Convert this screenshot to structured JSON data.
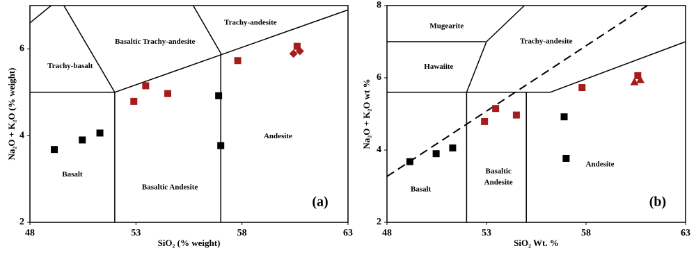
{
  "chart_data": [
    {
      "type": "scatter",
      "xlabel": "SiO₂ (% weight)",
      "ylabel": "Na₂O + K₂O (% weight)",
      "xlim": [
        48,
        63
      ],
      "ylim": [
        2,
        7
      ],
      "xticks": [
        48,
        53,
        58,
        63
      ],
      "yticks": [
        2,
        4,
        6
      ],
      "grid": false,
      "series": [
        {
          "color": "#000000",
          "marker": "square",
          "x": [
            49.15,
            50.47,
            51.3,
            56.9,
            57.0
          ],
          "values": [
            3.68,
            3.9,
            4.06,
            4.92,
            3.77
          ]
        },
        {
          "color": "#a51c1c",
          "marker": "square",
          "x": [
            52.9,
            53.46,
            54.5,
            57.8,
            60.6
          ],
          "values": [
            4.79,
            5.15,
            4.97,
            5.73,
            6.06
          ]
        },
        {
          "color": "#a51c1c",
          "marker": "diamond",
          "x": [
            60.43,
            60.73
          ],
          "values": [
            5.89,
            5.95
          ]
        }
      ],
      "boundaries": [
        {
          "x": [
            48,
            49.0
          ],
          "y": [
            6.6,
            7
          ]
        },
        {
          "x": [
            49.6,
            52
          ],
          "y": [
            7,
            5
          ]
        },
        {
          "x": [
            48,
            52
          ],
          "y": [
            5,
            5
          ]
        },
        {
          "x": [
            52,
            52
          ],
          "y": [
            2,
            5
          ]
        },
        {
          "x": [
            52,
            63
          ],
          "y": [
            5,
            6.9
          ]
        },
        {
          "x": [
            57,
            57
          ],
          "y": [
            2,
            5.9
          ]
        },
        {
          "x": [
            55.7,
            57
          ],
          "y": [
            7,
            5.9
          ]
        }
      ],
      "annotations": [
        {
          "text": "Trachy-basalt",
          "x": 49.9,
          "y": 5.6
        },
        {
          "text": "Basaltic Trachy-andesite",
          "x": 53.9,
          "y": 6.16
        },
        {
          "text": "Trachy-andesite",
          "x": 58.4,
          "y": 6.6
        },
        {
          "text": "Andesite",
          "x": 59.7,
          "y": 3.98
        },
        {
          "text": "Basalt",
          "x": 50,
          "y": 3.1
        },
        {
          "text": "Basaltic Andesite",
          "x": 54.6,
          "y": 2.8
        }
      ],
      "panel_label": "(a)"
    },
    {
      "type": "scatter",
      "xlabel": "SiO₂ Wt. %",
      "ylabel": "Na₂O + K₂O wt %",
      "xlim": [
        48,
        63
      ],
      "ylim": [
        2,
        8
      ],
      "xticks": [
        48,
        53,
        58,
        63
      ],
      "yticks": [
        2,
        4,
        6,
        8
      ],
      "grid": false,
      "series": [
        {
          "color": "#000000",
          "marker": "square",
          "x": [
            49.15,
            50.47,
            51.3,
            56.9,
            57.0
          ],
          "values": [
            3.68,
            3.9,
            4.06,
            4.92,
            3.77
          ]
        },
        {
          "color": "#a51c1c",
          "marker": "square",
          "x": [
            52.9,
            53.46,
            54.5,
            57.8,
            60.6
          ],
          "values": [
            4.79,
            5.15,
            4.97,
            5.73,
            6.06
          ]
        },
        {
          "color": "#a51c1c",
          "marker": "triangle",
          "x": [
            60.43,
            60.73
          ],
          "values": [
            5.89,
            5.95
          ]
        }
      ],
      "boundaries": [
        {
          "x": [
            48,
            61.08
          ],
          "y": [
            3.27,
            8
          ],
          "dash": true
        },
        {
          "x": [
            48,
            52.97
          ],
          "y": [
            7,
            7
          ]
        },
        {
          "x": [
            48,
            56.2
          ],
          "y": [
            5.6,
            5.6
          ]
        },
        {
          "x": [
            52,
            52
          ],
          "y": [
            2,
            5.6
          ]
        },
        {
          "x": [
            52,
            53
          ],
          "y": [
            5.6,
            7
          ]
        },
        {
          "x": [
            53,
            54.9
          ],
          "y": [
            7,
            8
          ]
        },
        {
          "x": [
            55,
            55
          ],
          "y": [
            2,
            5.6
          ]
        },
        {
          "x": [
            56.2,
            63
          ],
          "y": [
            5.6,
            7
          ]
        }
      ],
      "annotations": [
        {
          "text": "Mugearite",
          "x": 51.0,
          "y": 7.42
        },
        {
          "text": "Trachy-andesite",
          "x": 56,
          "y": 7
        },
        {
          "text": "Hawaiite",
          "x": 50.6,
          "y": 6.3
        },
        {
          "text": "Basalt",
          "x": 49.7,
          "y": 2.9
        },
        {
          "text": "Basaltic",
          "x": 53.6,
          "y": 3.4
        },
        {
          "text": "Andesite",
          "x": 53.6,
          "y": 3.1
        },
        {
          "text": "Andesite",
          "x": 58.7,
          "y": 3.6
        }
      ],
      "panel_label": "(b)"
    }
  ]
}
